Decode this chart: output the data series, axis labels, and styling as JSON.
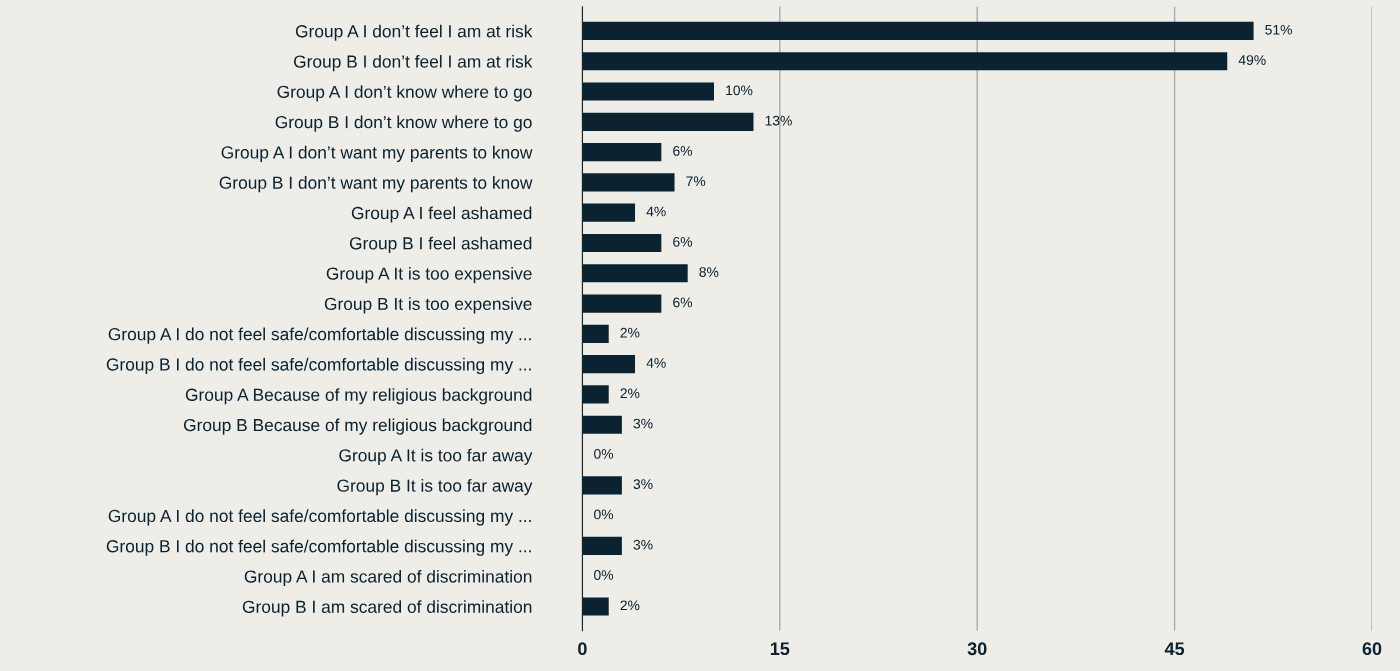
{
  "chart_data": {
    "type": "bar",
    "orientation": "horizontal",
    "categories": [
      "Group A I don’t feel I am at risk",
      "Group B I don’t feel I am at risk",
      "Group A I don’t know where to go",
      "Group B I don’t know where to go",
      "Group A I don’t want my parents to know",
      "Group B I don’t want my parents to know",
      "Group A I feel ashamed",
      "Group B I feel ashamed",
      "Group A It is too expensive",
      "Group B It is too expensive",
      "Group A I do not feel safe/comfortable discussing my ...",
      "Group B I do not feel safe/comfortable discussing my ...",
      "Group A Because of my religious background",
      "Group B Because of my religious background",
      "Group A It is too far away",
      "Group B It is too far away",
      "Group A I do not feel safe/comfortable discussing my ...",
      "Group B I do not feel safe/comfortable discussing my ...",
      "Group A I am scared of discrimination",
      "Group B I am scared of discrimination"
    ],
    "values": [
      51,
      49,
      10,
      13,
      6,
      7,
      4,
      6,
      8,
      6,
      2,
      4,
      2,
      3,
      0,
      3,
      0,
      3,
      0,
      2
    ],
    "value_labels": [
      "51%",
      "49%",
      "10%",
      "13%",
      "6%",
      "7%",
      "4%",
      "6%",
      "8%",
      "6%",
      "2%",
      "4%",
      "2%",
      "3%",
      "0%",
      "3%",
      "0%",
      "3%",
      "0%",
      "2%"
    ],
    "color": "#0b2230",
    "xlim": [
      0,
      60
    ],
    "xticks": [
      0,
      15,
      30,
      45,
      60
    ],
    "grid": "x"
  }
}
